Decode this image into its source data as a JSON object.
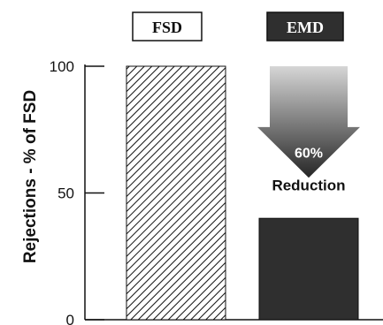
{
  "chart_data": {
    "type": "bar",
    "categories": [
      "FSD",
      "EMD"
    ],
    "values": [
      100,
      40
    ],
    "ylabel": "Rejections - % of FSD",
    "xlabel": "",
    "ylim": [
      0,
      100
    ],
    "yticks": [
      0,
      50,
      100
    ],
    "legend": [
      {
        "label": "FSD",
        "style": "hatched"
      },
      {
        "label": "EMD",
        "style": "dark-fill"
      }
    ],
    "legend_position": "top",
    "annotation": {
      "percent": "60%",
      "text": "Reduction",
      "from_value": 100,
      "to_value": 40
    },
    "grid": false
  },
  "colors": {
    "emd_fill": "#2f2f2f",
    "arrow_dark": "#262626",
    "arrow_light": "#d6d6d6",
    "hatch": "#111111"
  }
}
